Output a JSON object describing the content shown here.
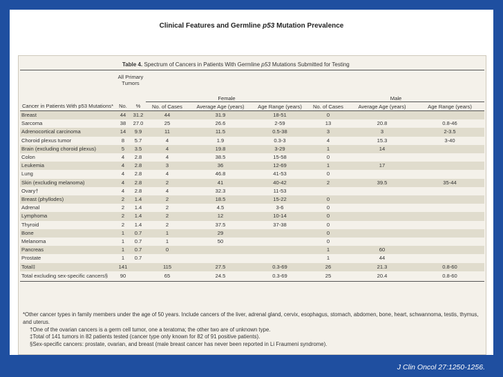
{
  "slide_title_pre": "Clinical Features and Germline ",
  "slide_title_em": "p53",
  "slide_title_post": " Mutation Prevalence",
  "table_caption": {
    "label": "Table 4.",
    "text_pre": " Spectrum of Cancers in Patients With Germline ",
    "text_em": "p53",
    "text_post": " Mutations Submitted for Testing"
  },
  "headers": {
    "all_primary": "All Primary Tumors",
    "female": "Female",
    "male": "Male",
    "cancer_col": "Cancer in Patients With p53 Mutations*",
    "no": "No.",
    "pct": "%",
    "f_cases": "No. of Cases",
    "f_avg": "Average Age (years)",
    "f_range": "Age Range (years)",
    "m_cases": "No. of Cases",
    "m_avg": "Average Age (years)",
    "m_range": "Age Range (years)"
  },
  "rows": [
    {
      "name": "Breast",
      "no": "44",
      "pct": "31.2",
      "fc": "44",
      "fa": "31.9",
      "fr": "18-51",
      "mc": "0",
      "ma": "",
      "mr": ""
    },
    {
      "name": "Sarcoma",
      "no": "38",
      "pct": "27.0",
      "fc": "25",
      "fa": "26.6",
      "fr": "2-59",
      "mc": "13",
      "ma": "20.8",
      "mr": "0.8-46"
    },
    {
      "name": "Adrenocortical carcinoma",
      "no": "14",
      "pct": "9.9",
      "fc": "11",
      "fa": "11.5",
      "fr": "0.5-38",
      "mc": "3",
      "ma": "3",
      "mr": "2-3.5"
    },
    {
      "name": "Choroid plexus tumor",
      "no": "8",
      "pct": "5.7",
      "fc": "4",
      "fa": "1.9",
      "fr": "0.3-3",
      "mc": "4",
      "ma": "15.3",
      "mr": "3-40"
    },
    {
      "name": "Brain (excluding choroid plexus)",
      "no": "5",
      "pct": "3.5",
      "fc": "4",
      "fa": "19.8",
      "fr": "3-29",
      "mc": "1",
      "ma": "14",
      "mr": ""
    },
    {
      "name": "Colon",
      "no": "4",
      "pct": "2.8",
      "fc": "4",
      "fa": "38.5",
      "fr": "15-58",
      "mc": "0",
      "ma": "",
      "mr": ""
    },
    {
      "name": "Leukemia",
      "no": "4",
      "pct": "2.8",
      "fc": "3",
      "fa": "36",
      "fr": "12-69",
      "mc": "1",
      "ma": "17",
      "mr": ""
    },
    {
      "name": "Lung",
      "no": "4",
      "pct": "2.8",
      "fc": "4",
      "fa": "46.8",
      "fr": "41-53",
      "mc": "0",
      "ma": "",
      "mr": ""
    },
    {
      "name": "Skin (excluding melanoma)",
      "no": "4",
      "pct": "2.8",
      "fc": "2",
      "fa": "41",
      "fr": "40-42",
      "mc": "2",
      "ma": "39.5",
      "mr": "35-44"
    },
    {
      "name": "Ovary†",
      "no": "4",
      "pct": "2.8",
      "fc": "4",
      "fa": "32.3",
      "fr": "11-53",
      "mc": "",
      "ma": "",
      "mr": ""
    },
    {
      "name": "Breast (phyllodes)",
      "no": "2",
      "pct": "1.4",
      "fc": "2",
      "fa": "18.5",
      "fr": "15-22",
      "mc": "0",
      "ma": "",
      "mr": ""
    },
    {
      "name": "Adrenal",
      "no": "2",
      "pct": "1.4",
      "fc": "2",
      "fa": "4.5",
      "fr": "3-6",
      "mc": "0",
      "ma": "",
      "mr": ""
    },
    {
      "name": "Lymphoma",
      "no": "2",
      "pct": "1.4",
      "fc": "2",
      "fa": "12",
      "fr": "10-14",
      "mc": "0",
      "ma": "",
      "mr": ""
    },
    {
      "name": "Thyroid",
      "no": "2",
      "pct": "1.4",
      "fc": "2",
      "fa": "37.5",
      "fr": "37-38",
      "mc": "0",
      "ma": "",
      "mr": ""
    },
    {
      "name": "Bone",
      "no": "1",
      "pct": "0.7",
      "fc": "1",
      "fa": "29",
      "fr": "",
      "mc": "0",
      "ma": "",
      "mr": ""
    },
    {
      "name": "Melanoma",
      "no": "1",
      "pct": "0.7",
      "fc": "1",
      "fa": "50",
      "fr": "",
      "mc": "0",
      "ma": "",
      "mr": ""
    },
    {
      "name": "Pancreas",
      "no": "1",
      "pct": "0.7",
      "fc": "0",
      "fa": "",
      "fr": "",
      "mc": "1",
      "ma": "60",
      "mr": ""
    },
    {
      "name": "Prostate",
      "no": "1",
      "pct": "0.7",
      "fc": "",
      "fa": "",
      "fr": "",
      "mc": "1",
      "ma": "44",
      "mr": ""
    },
    {
      "name": "Total‡",
      "no": "141",
      "pct": "",
      "fc": "115",
      "fa": "27.5",
      "fr": "0.3-69",
      "mc": "26",
      "ma": "21.3",
      "mr": "0.8-60"
    },
    {
      "name": "Total excluding sex-specific cancers§",
      "no": "90",
      "pct": "",
      "fc": "65",
      "fa": "24.5",
      "fr": "0.3-69",
      "mc": "25",
      "ma": "20.4",
      "mr": "0.8-60"
    }
  ],
  "footnotes": [
    "*Other cancer types in family members under the age of 50 years. Include cancers of the liver, adrenal gland, cervix, esophagus, stomach, abdomen, bone, heart, schwannoma, testis, thymus, and uterus.",
    "†One of the ovarian cancers is a germ cell tumor, one a teratoma; the other two are of unknown type.",
    "‡Total of 141 tumors in 82 patients tested (cancer type only known for 82 of 91 positive patients).",
    "§Sex-specific cancers: prostate, ovarian, and breast (male breast cancer has never been reported in Li Fraumeni syndrome)."
  ],
  "citation": "J Clin Oncol 27:1250-1256."
}
